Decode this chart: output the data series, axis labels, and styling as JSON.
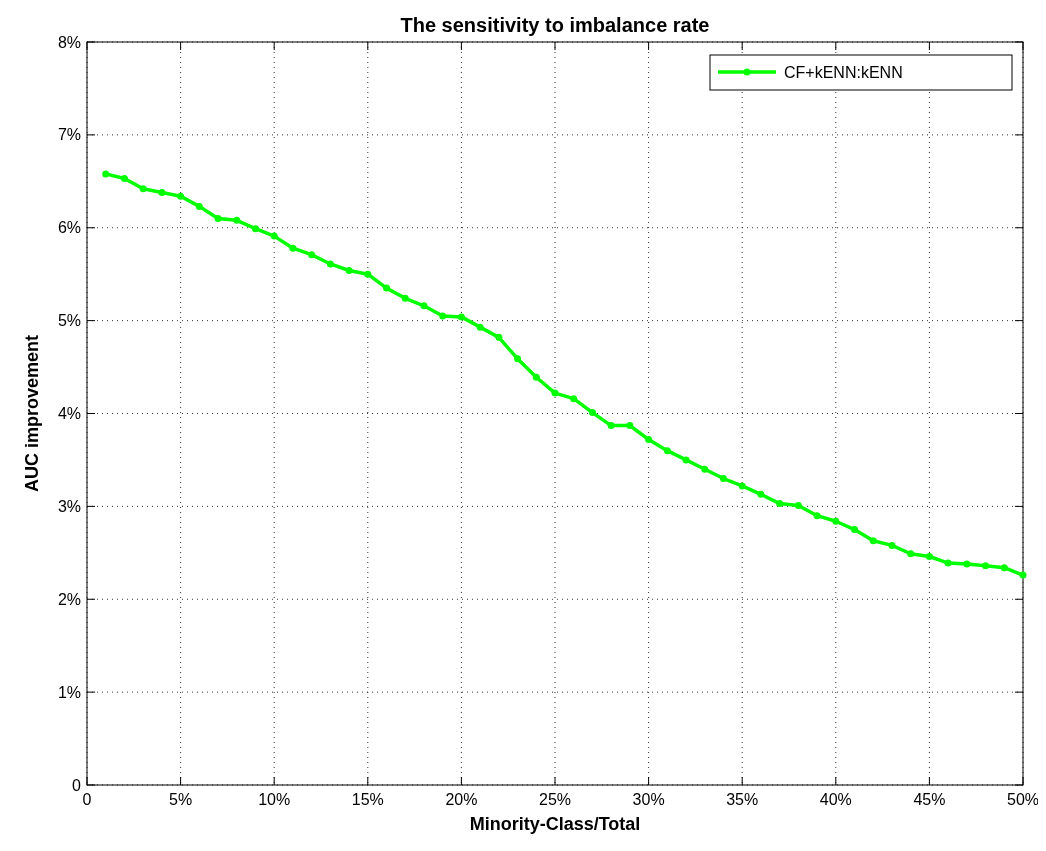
{
  "chart_data": {
    "type": "line",
    "title": "The sensitivity to imbalance rate",
    "xlabel": "Minority-Class/Total",
    "ylabel": "AUC improvement",
    "x": [
      1,
      2,
      3,
      4,
      5,
      6,
      7,
      8,
      9,
      10,
      11,
      12,
      13,
      14,
      15,
      16,
      17,
      18,
      19,
      20,
      21,
      22,
      23,
      24,
      25,
      26,
      27,
      28,
      29,
      30,
      31,
      32,
      33,
      34,
      35,
      36,
      37,
      38,
      39,
      40,
      41,
      42,
      43,
      44,
      45,
      46,
      47,
      48,
      49,
      50
    ],
    "series": [
      {
        "name": "CF+kENN:kENN",
        "color": "#00ff00",
        "values": [
          6.58,
          6.53,
          6.42,
          6.38,
          6.34,
          6.23,
          6.1,
          6.08,
          5.99,
          5.91,
          5.78,
          5.71,
          5.61,
          5.54,
          5.5,
          5.35,
          5.24,
          5.16,
          5.05,
          5.04,
          4.93,
          4.82,
          4.59,
          4.39,
          4.22,
          4.16,
          4.01,
          3.87,
          3.87,
          3.72,
          3.6,
          3.5,
          3.4,
          3.3,
          3.22,
          3.13,
          3.03,
          3.01,
          2.9,
          2.84,
          2.75,
          2.63,
          2.58,
          2.49,
          2.46,
          2.39,
          2.38,
          2.36,
          2.34,
          2.26
        ]
      }
    ],
    "xlim": [
      0,
      50
    ],
    "xticks": [
      0,
      {
        "value": 5,
        "label": "5%"
      },
      {
        "value": 10,
        "label": "10%"
      },
      {
        "value": 15,
        "label": "15%"
      },
      {
        "value": 20,
        "label": "20%"
      },
      {
        "value": 25,
        "label": "25%"
      },
      {
        "value": 30,
        "label": "30%"
      },
      {
        "value": 35,
        "label": "35%"
      },
      {
        "value": 40,
        "label": "40%"
      },
      {
        "value": 45,
        "label": "45%"
      },
      {
        "value": 50,
        "label": "50%"
      }
    ],
    "ylim": [
      0,
      8
    ],
    "yticks": [
      0,
      {
        "value": 1,
        "label": "1%"
      },
      {
        "value": 2,
        "label": "2%"
      },
      {
        "value": 3,
        "label": "3%"
      },
      {
        "value": 4,
        "label": "4%"
      },
      {
        "value": 5,
        "label": "5%"
      },
      {
        "value": 6,
        "label": "6%"
      },
      {
        "value": 7,
        "label": "7%"
      },
      {
        "value": 8,
        "label": "8%"
      }
    ],
    "grid": true,
    "legend": "top right",
    "marker": "circle",
    "line_style": "solid"
  }
}
